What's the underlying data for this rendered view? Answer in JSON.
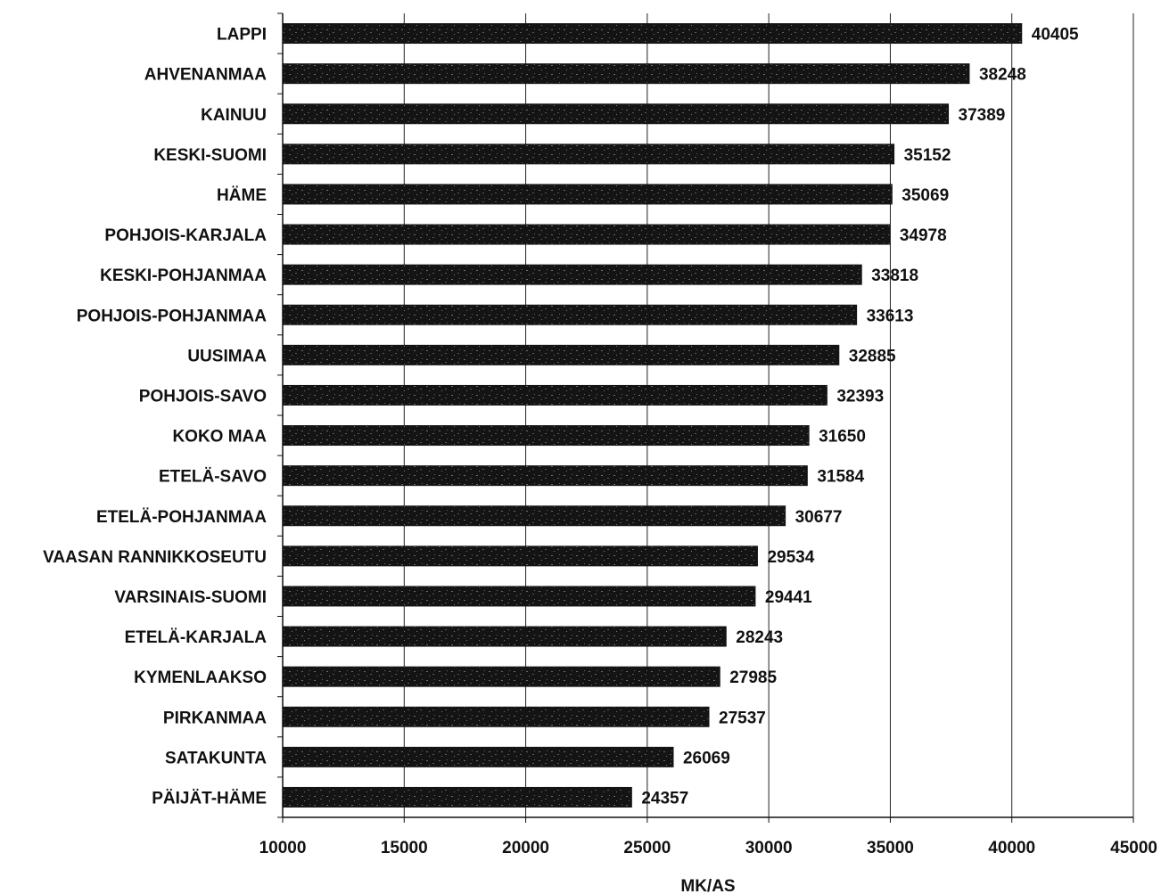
{
  "chart_data": {
    "type": "bar",
    "orientation": "horizontal",
    "categories": [
      "LAPPI",
      "AHVENANMAA",
      "KAINUU",
      "KESKI-SUOMI",
      "HÄME",
      "POHJOIS-KARJALA",
      "KESKI-POHJANMAA",
      "POHJOIS-POHJANMAA",
      "UUSIMAA",
      "POHJOIS-SAVO",
      "KOKO MAA",
      "ETELÄ-SAVO",
      "ETELÄ-POHJANMAA",
      "VAASAN RANNIKKOSEUTU",
      "VARSINAIS-SUOMI",
      "ETELÄ-KARJALA",
      "KYMENLAAKSO",
      "PIRKANMAA",
      "SATAKUNTA",
      "PÄIJÄT-HÄME"
    ],
    "values": [
      40405,
      38248,
      37389,
      35152,
      35069,
      34978,
      33818,
      33613,
      32885,
      32393,
      31650,
      31584,
      30677,
      29534,
      29441,
      28243,
      27985,
      27537,
      26069,
      24357
    ],
    "data_labels": [
      "40405",
      "38248",
      "37389",
      "35152",
      "35069",
      "34978",
      "33818",
      "33613",
      "32885",
      "32393",
      "31650",
      "31584",
      "30677",
      "29534",
      "29441",
      "28243",
      "27985",
      "27537",
      "26069",
      "24357"
    ],
    "xlabel": "MK/AS",
    "ylabel": "",
    "title": "",
    "xlim": [
      10000,
      45000
    ],
    "x_ticks": [
      10000,
      15000,
      20000,
      25000,
      30000,
      35000,
      40000,
      45000
    ],
    "x_tick_labels": [
      "10000",
      "15000",
      "20000",
      "25000",
      "30000",
      "35000",
      "40000",
      "45000"
    ],
    "grid": "vertical",
    "legend": "none",
    "colors": {
      "bar": "#141414",
      "bar_speckle": "#6e6e6e",
      "grid": "#222222",
      "axis": "#111111",
      "text": "#111111",
      "background": "#ffffff"
    }
  }
}
